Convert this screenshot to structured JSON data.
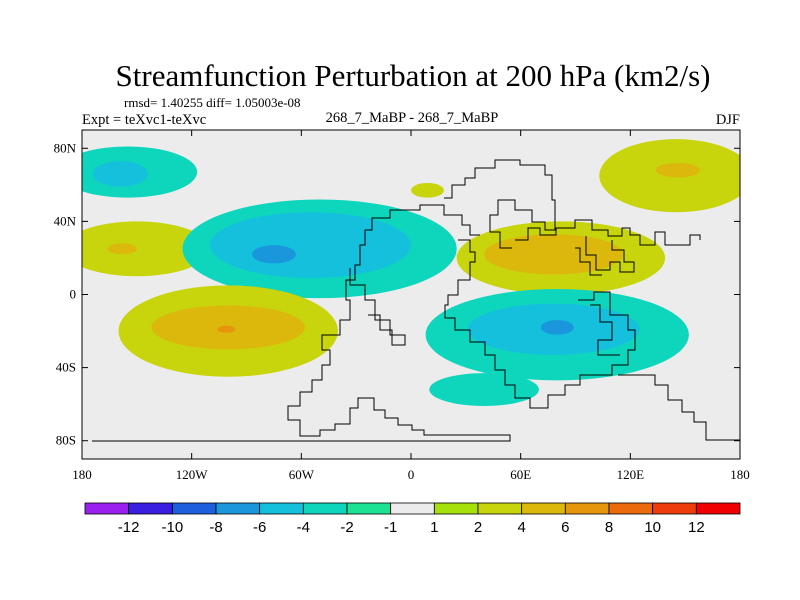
{
  "chart_data": {
    "type": "heatmap",
    "title": "Streamfunction Perturbation at 200 hPa (km2/s)",
    "stats": "rmsd= 1.40255 diff= 1.05003e-08",
    "left_label": "Expt = teXvc1-teXvc",
    "center_label": "268_7_MaBP - 268_7_MaBP",
    "season": "DJF",
    "x_ticks": [
      "180",
      "120W",
      "60W",
      "0",
      "60E",
      "120E",
      "180"
    ],
    "y_ticks": [
      "80N",
      "40N",
      "0",
      "40S",
      "80S"
    ],
    "lon_range": [
      -180,
      180
    ],
    "lat_range": [
      -90,
      90
    ],
    "colorbar": {
      "labels": [
        "-12",
        "-10",
        "-8",
        "-6",
        "-4",
        "-2",
        "-1",
        "1",
        "2",
        "4",
        "6",
        "8",
        "10",
        "12"
      ],
      "colors": [
        "#9b1fee",
        "#3a1fe0",
        "#1e5fde",
        "#1a96dc",
        "#14c0dc",
        "#0ed6bd",
        "#1ce293",
        "#ececec",
        "#a6e10c",
        "#c8d40c",
        "#dcb80c",
        "#e6960c",
        "#ea6a0c",
        "#ee3c0c",
        "#f00000"
      ]
    },
    "features": [
      {
        "name": "anomaly-nh-pacific",
        "level": "-2",
        "center": [
          -155,
          67
        ],
        "radius": [
          38,
          14
        ]
      },
      {
        "name": "anomaly-nh-pacific-core",
        "level": "-4",
        "center": [
          -159,
          66
        ],
        "radius": [
          15,
          7
        ]
      },
      {
        "name": "anomaly-subtropical-pacific",
        "level": "2",
        "center": [
          -150,
          25
        ],
        "radius": [
          40,
          15
        ]
      },
      {
        "name": "anomaly-subtropical-pacific-core",
        "level": "4",
        "center": [
          -158,
          25
        ],
        "radius": [
          8,
          3
        ]
      },
      {
        "name": "anomaly-north-america",
        "level": "-2",
        "center": [
          -50,
          25
        ],
        "radius": [
          75,
          27
        ]
      },
      {
        "name": "anomaly-north-america-mid",
        "level": "-4",
        "center": [
          -55,
          27
        ],
        "radius": [
          55,
          18
        ]
      },
      {
        "name": "anomaly-north-america-core",
        "level": "-6",
        "center": [
          -75,
          22
        ],
        "radius": [
          12,
          5
        ]
      },
      {
        "name": "anomaly-south-pacific",
        "level": "2",
        "center": [
          -100,
          -20
        ],
        "radius": [
          60,
          25
        ]
      },
      {
        "name": "anomaly-south-pacific-mid",
        "level": "4",
        "center": [
          -100,
          -18
        ],
        "radius": [
          42,
          12
        ]
      },
      {
        "name": "anomaly-south-pacific-core",
        "level": "6",
        "center": [
          -101,
          -19
        ],
        "radius": [
          5,
          2
        ]
      },
      {
        "name": "anomaly-north-atlantic",
        "level": "2",
        "center": [
          9,
          57
        ],
        "radius": [
          9,
          4
        ]
      },
      {
        "name": "anomaly-europe",
        "level": "2",
        "center": [
          82,
          20
        ],
        "radius": [
          57,
          20
        ]
      },
      {
        "name": "anomaly-europe-core",
        "level": "4",
        "center": [
          78,
          22
        ],
        "radius": [
          38,
          11
        ]
      },
      {
        "name": "anomaly-siberia",
        "level": "2",
        "center": [
          145,
          65
        ],
        "radius": [
          42,
          20
        ]
      },
      {
        "name": "anomaly-siberia-core",
        "level": "4",
        "center": [
          146,
          68
        ],
        "radius": [
          12,
          4
        ]
      },
      {
        "name": "anomaly-indian-ocean",
        "level": "-2",
        "center": [
          80,
          -22
        ],
        "radius": [
          72,
          25
        ]
      },
      {
        "name": "anomaly-indian-ocean-mid",
        "level": "-4",
        "center": [
          78,
          -19
        ],
        "radius": [
          47,
          14
        ]
      },
      {
        "name": "anomaly-indian-ocean-core",
        "level": "-6",
        "center": [
          80,
          -18
        ],
        "radius": [
          9,
          4
        ]
      },
      {
        "name": "anomaly-southern-ocean",
        "level": "-2",
        "center": [
          40,
          -52
        ],
        "radius": [
          30,
          9
        ]
      }
    ]
  }
}
